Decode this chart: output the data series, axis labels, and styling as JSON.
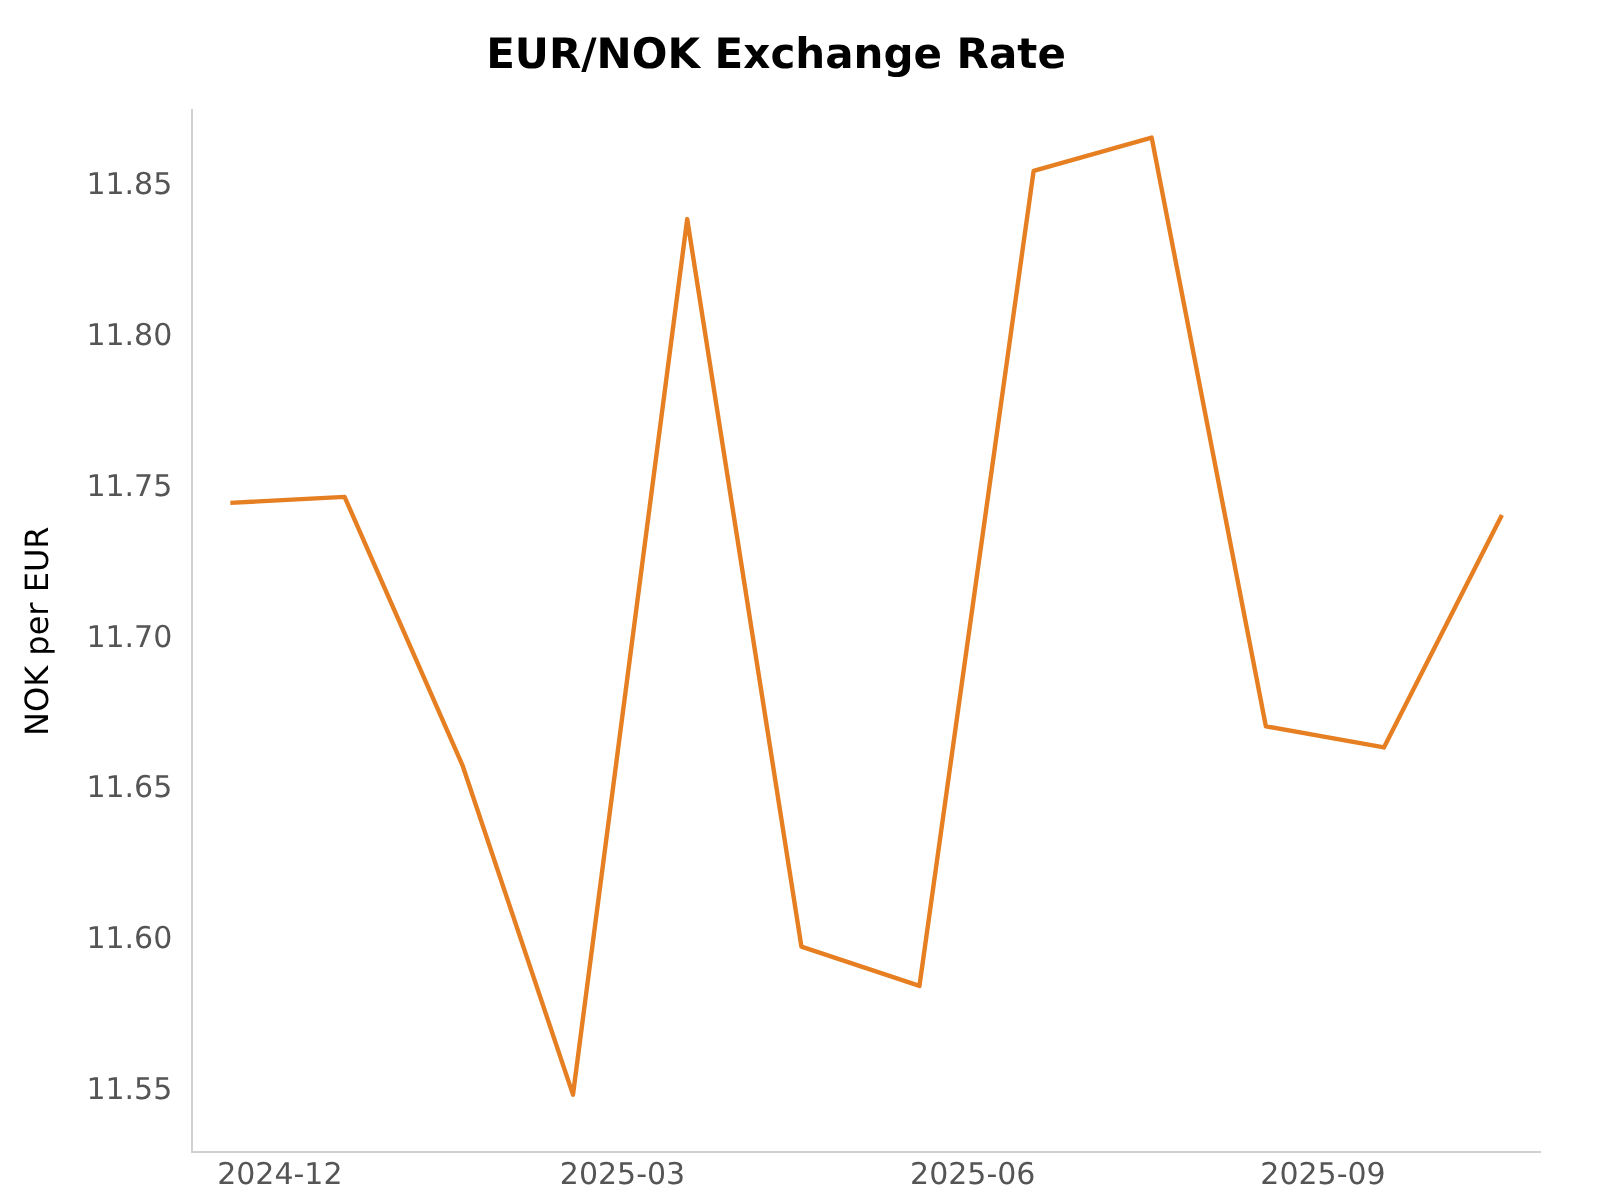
{
  "chart_data": {
    "type": "line",
    "title": "EUR/NOK Exchange Rate",
    "ylabel": "NOK per EUR",
    "x": [
      "2024-11-18",
      "2024-12-18",
      "2025-01-18",
      "2025-02-16",
      "2025-03-18",
      "2025-04-17",
      "2025-05-18",
      "2025-06-17",
      "2025-07-18",
      "2025-08-17",
      "2025-09-17",
      "2025-10-18"
    ],
    "series": [
      {
        "color": "#e67e22",
        "values": [
          11.745,
          11.747,
          11.658,
          11.549,
          11.839,
          11.598,
          11.585,
          11.855,
          11.866,
          11.671,
          11.664,
          11.741
        ]
      }
    ],
    "xlim": [
      "2024-11-08",
      "2025-10-28"
    ],
    "xticks": [
      "2024-12",
      "2025-03",
      "2025-06",
      "2025-09"
    ],
    "ylim": [
      11.53,
      11.875
    ],
    "yticks": [
      11.55,
      {
        "value": 11.6,
        "label": "11.60"
      },
      11.65,
      {
        "value": 11.7,
        "label": "11.70"
      },
      11.75,
      {
        "value": 11.8,
        "label": "11.80"
      },
      11.85
    ],
    "grid": false,
    "legend": false,
    "marker": "none",
    "line_style": "solid"
  }
}
